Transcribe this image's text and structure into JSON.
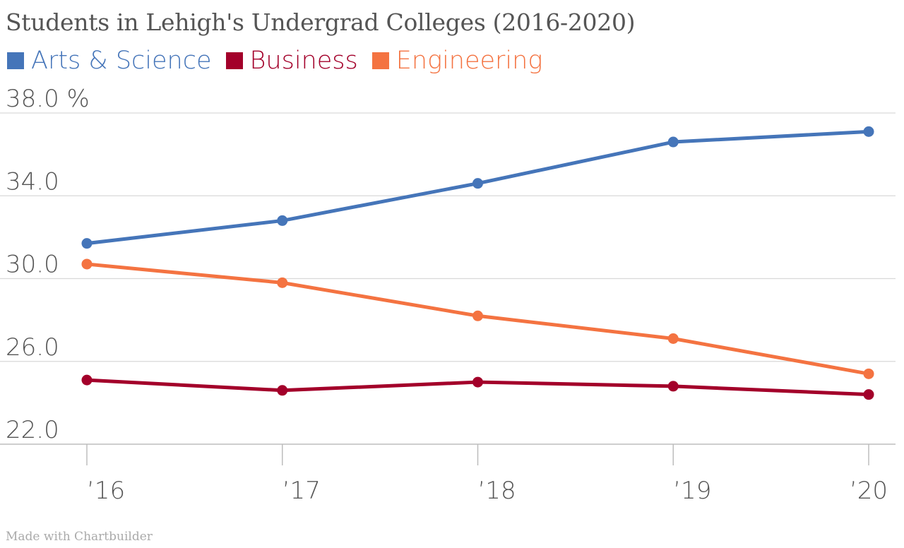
{
  "chart_data": {
    "type": "line",
    "title": "Students in Lehigh's Undergrad Colleges (2016-2020)",
    "x": [
      "2016",
      "2017",
      "2018",
      "2019",
      "2020"
    ],
    "tick_labels_x": [
      "’16",
      "’17",
      "’18",
      "’19",
      "’20"
    ],
    "tick_labels_y": [
      "38.0 %",
      "34.0",
      "30.0",
      "26.0",
      "22.0"
    ],
    "ylim": [
      22,
      38
    ],
    "y_ticks": [
      38,
      34,
      30,
      26,
      22
    ],
    "grid": true,
    "legend_position": "top-left",
    "series": [
      {
        "name": "Arts & Science",
        "color": "#4575b9",
        "values": [
          31.7,
          32.8,
          34.6,
          36.6,
          37.1
        ]
      },
      {
        "name": "Business",
        "color": "#a3002a",
        "values": [
          25.1,
          24.6,
          25.0,
          24.8,
          24.4
        ]
      },
      {
        "name": "Engineering",
        "color": "#f47341",
        "values": [
          30.7,
          29.8,
          28.2,
          27.1,
          25.4
        ]
      }
    ]
  },
  "footer": {
    "credit": "Made with Chartbuilder"
  }
}
